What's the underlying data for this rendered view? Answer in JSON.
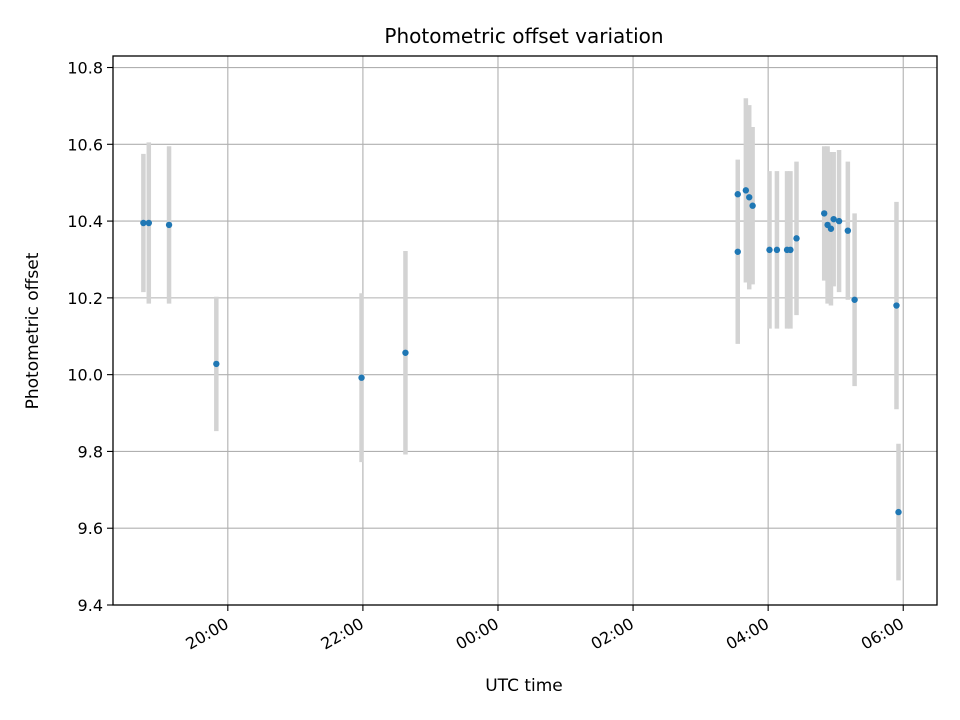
{
  "chart_data": {
    "type": "scatter",
    "title": "Photometric offset variation",
    "xlabel": "UTC time",
    "ylabel": "Photometric offset",
    "x_unit": "hours",
    "xlim": [
      18.3,
      30.5
    ],
    "ylim": [
      9.4,
      10.83
    ],
    "grid": true,
    "point_color": "#1f77b4",
    "errorbar_color": "#d3d3d3",
    "x_ticks": [
      {
        "value": 20,
        "label": "20:00"
      },
      {
        "value": 22,
        "label": "22:00"
      },
      {
        "value": 24,
        "label": "00:00"
      },
      {
        "value": 26,
        "label": "02:00"
      },
      {
        "value": 28,
        "label": "04:00"
      },
      {
        "value": 30,
        "label": "06:00"
      }
    ],
    "y_ticks": [
      {
        "value": 9.4,
        "label": "9.4"
      },
      {
        "value": 9.6,
        "label": "9.6"
      },
      {
        "value": 9.8,
        "label": "9.8"
      },
      {
        "value": 10.0,
        "label": "10.0"
      },
      {
        "value": 10.2,
        "label": "10.2"
      },
      {
        "value": 10.4,
        "label": "10.4"
      },
      {
        "value": 10.6,
        "label": "10.6"
      },
      {
        "value": 10.8,
        "label": "10.8"
      }
    ],
    "points": [
      {
        "x": 18.75,
        "y": 10.395,
        "yerr": 0.18
      },
      {
        "x": 18.83,
        "y": 10.395,
        "yerr": 0.21
      },
      {
        "x": 19.13,
        "y": 10.39,
        "yerr": 0.205
      },
      {
        "x": 19.83,
        "y": 10.028,
        "yerr": 0.175
      },
      {
        "x": 21.98,
        "y": 9.992,
        "yerr": 0.22
      },
      {
        "x": 22.63,
        "y": 10.057,
        "yerr": 0.265
      },
      {
        "x": 27.55,
        "y": 10.47,
        "yerr": 0.085
      },
      {
        "x": 27.55,
        "y": 10.32,
        "yerr": 0.24
      },
      {
        "x": 27.67,
        "y": 10.48,
        "yerr": 0.24
      },
      {
        "x": 27.72,
        "y": 10.462,
        "yerr": 0.24
      },
      {
        "x": 27.77,
        "y": 10.44,
        "yerr": 0.205
      },
      {
        "x": 28.02,
        "y": 10.325,
        "yerr": 0.205
      },
      {
        "x": 28.13,
        "y": 10.325,
        "yerr": 0.205
      },
      {
        "x": 28.28,
        "y": 10.325,
        "yerr": 0.205
      },
      {
        "x": 28.33,
        "y": 10.325,
        "yerr": 0.205
      },
      {
        "x": 28.42,
        "y": 10.355,
        "yerr": 0.2
      },
      {
        "x": 28.83,
        "y": 10.42,
        "yerr": 0.175
      },
      {
        "x": 28.88,
        "y": 10.39,
        "yerr": 0.205
      },
      {
        "x": 28.93,
        "y": 10.38,
        "yerr": 0.2
      },
      {
        "x": 28.97,
        "y": 10.405,
        "yerr": 0.175
      },
      {
        "x": 29.05,
        "y": 10.4,
        "yerr": 0.185
      },
      {
        "x": 29.18,
        "y": 10.375,
        "yerr": 0.18
      },
      {
        "x": 29.28,
        "y": 10.195,
        "yerr": 0.225
      },
      {
        "x": 29.9,
        "y": 10.18,
        "yerr": 0.27
      },
      {
        "x": 29.93,
        "y": 9.642,
        "yerr": 0.178
      }
    ]
  }
}
